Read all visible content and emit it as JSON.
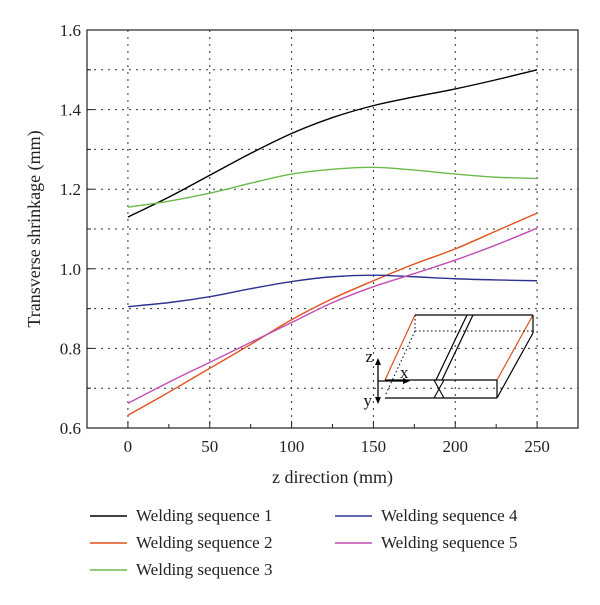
{
  "chart_data": {
    "type": "line",
    "xlabel": "z direction (mm)",
    "ylabel": "Transverse shrinkage (mm)",
    "xlim": [
      -25,
      275
    ],
    "ylim": [
      0.6,
      1.6
    ],
    "x_ticks": [
      "0",
      "50",
      "100",
      "150",
      "200",
      "250"
    ],
    "y_ticks": [
      "0.6",
      "0.8",
      "1.0",
      "1.2",
      "1.4",
      "1.6"
    ],
    "grid": true,
    "legend_position": "bottom",
    "series": [
      {
        "name": "Welding sequence 1",
        "color": "#000000",
        "x": [
          0,
          25,
          50,
          75,
          100,
          125,
          150,
          175,
          200,
          225,
          250
        ],
        "y": [
          1.13,
          1.18,
          1.235,
          1.29,
          1.34,
          1.38,
          1.41,
          1.432,
          1.452,
          1.475,
          1.5
        ]
      },
      {
        "name": "Welding sequence 2",
        "color": "#e2501e",
        "x": [
          0,
          25,
          50,
          75,
          100,
          125,
          150,
          175,
          200,
          225,
          250
        ],
        "y": [
          0.632,
          0.69,
          0.75,
          0.81,
          0.872,
          0.925,
          0.97,
          1.012,
          1.05,
          1.095,
          1.14
        ]
      },
      {
        "name": "Welding sequence 3",
        "color": "#6cba4a",
        "x": [
          0,
          25,
          50,
          75,
          100,
          125,
          150,
          175,
          200,
          225,
          250
        ],
        "y": [
          1.155,
          1.17,
          1.19,
          1.215,
          1.238,
          1.25,
          1.255,
          1.248,
          1.238,
          1.23,
          1.227
        ]
      },
      {
        "name": "Welding sequence 4",
        "color": "#2e3192",
        "x": [
          0,
          25,
          50,
          75,
          100,
          125,
          150,
          175,
          200,
          225,
          250
        ],
        "y": [
          0.905,
          0.915,
          0.93,
          0.95,
          0.968,
          0.98,
          0.984,
          0.98,
          0.975,
          0.972,
          0.97
        ]
      },
      {
        "name": "Welding sequence 5",
        "color": "#c04fb4",
        "x": [
          0,
          25,
          50,
          75,
          100,
          125,
          150,
          175,
          200,
          225,
          250
        ],
        "y": [
          0.662,
          0.715,
          0.765,
          0.815,
          0.865,
          0.915,
          0.955,
          0.988,
          1.022,
          1.06,
          1.102
        ]
      }
    ],
    "inset": {
      "axis_labels": [
        "z",
        "x",
        "y"
      ],
      "edge_color": "#e2501e"
    }
  }
}
